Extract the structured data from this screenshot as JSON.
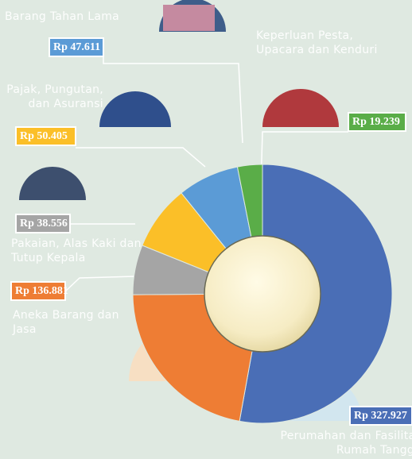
{
  "chart_data": {
    "type": "pie",
    "categories": [
      "Perumahan dan Fasilitas Rumah Tangga",
      "Aneka Barang dan Jasa",
      "Pakaian, Alas Kaki dan Tutup Kepala",
      "Pajak, Pungutan, dan Asuransi",
      "Barang Tahan Lama",
      "Keperluan Pesta, Upacara dan Kenduri"
    ],
    "values": [
      327927,
      136881,
      38556,
      50405,
      47611,
      19239
    ],
    "value_labels": [
      "Rp 327.927",
      "Rp 136.881",
      "Rp 38.556",
      "Rp 50.405",
      "Rp 47.611",
      "Rp 19.239"
    ],
    "colors": [
      "#4a6eb6",
      "#ee7d34",
      "#a5a5a5",
      "#fbbf28",
      "#5b9bd6",
      "#5aad48"
    ]
  }
}
